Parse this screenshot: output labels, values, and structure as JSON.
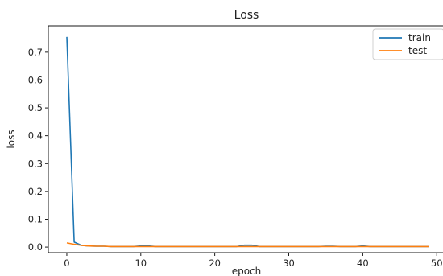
{
  "chart_data": {
    "type": "line",
    "title": "Loss",
    "xlabel": "epoch",
    "ylabel": "loss",
    "xlim": [
      -2.5,
      51.5
    ],
    "ylim": [
      -0.02,
      0.795
    ],
    "xticks": [
      0,
      10,
      20,
      30,
      40,
      50
    ],
    "yticks": [
      0.0,
      0.1,
      0.2,
      0.3,
      0.4,
      0.5,
      0.6,
      0.7
    ],
    "xtick_labels": [
      "0",
      "10",
      "20",
      "30",
      "40",
      "50"
    ],
    "ytick_labels": [
      "0.0",
      "0.1",
      "0.2",
      "0.3",
      "0.4",
      "0.5",
      "0.6",
      "0.7"
    ],
    "legend_position": "top-right",
    "grid": false,
    "x": [
      0,
      1,
      2,
      3,
      4,
      5,
      6,
      7,
      8,
      9,
      10,
      11,
      12,
      13,
      14,
      15,
      16,
      17,
      18,
      19,
      20,
      21,
      22,
      23,
      24,
      25,
      26,
      27,
      28,
      29,
      30,
      31,
      32,
      33,
      34,
      35,
      36,
      37,
      38,
      39,
      40,
      41,
      42,
      43,
      44,
      45,
      46,
      47,
      48,
      49
    ],
    "series": [
      {
        "name": "train",
        "color": "#1f77b4",
        "values": [
          0.755,
          0.018,
          0.006,
          0.004,
          0.003,
          0.003,
          0.002,
          0.002,
          0.002,
          0.002,
          0.004,
          0.004,
          0.002,
          0.002,
          0.002,
          0.002,
          0.002,
          0.002,
          0.002,
          0.002,
          0.002,
          0.002,
          0.002,
          0.002,
          0.007,
          0.007,
          0.002,
          0.002,
          0.002,
          0.002,
          0.002,
          0.002,
          0.002,
          0.002,
          0.002,
          0.003,
          0.003,
          0.002,
          0.002,
          0.002,
          0.004,
          0.002,
          0.002,
          0.002,
          0.002,
          0.002,
          0.002,
          0.002,
          0.002,
          0.002
        ]
      },
      {
        "name": "test",
        "color": "#ff7f0e",
        "values": [
          0.015,
          0.01,
          0.006,
          0.004,
          0.003,
          0.003,
          0.002,
          0.002,
          0.002,
          0.002,
          0.002,
          0.002,
          0.002,
          0.002,
          0.002,
          0.002,
          0.002,
          0.002,
          0.002,
          0.002,
          0.002,
          0.002,
          0.002,
          0.002,
          0.002,
          0.002,
          0.002,
          0.002,
          0.002,
          0.002,
          0.002,
          0.002,
          0.002,
          0.002,
          0.002,
          0.002,
          0.002,
          0.002,
          0.002,
          0.002,
          0.002,
          0.002,
          0.002,
          0.002,
          0.002,
          0.002,
          0.002,
          0.002,
          0.002,
          0.002
        ]
      }
    ]
  }
}
